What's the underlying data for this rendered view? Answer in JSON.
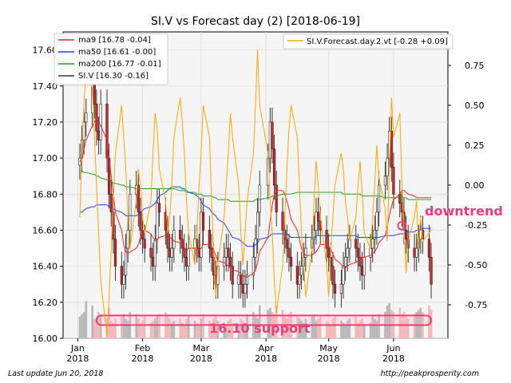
{
  "chart_data": {
    "type": "candlestick",
    "title": "SI.V vs Forecast day (2)  [2018-06-19]",
    "x_tick_labels": [
      {
        "date": "2018-01-01",
        "label": [
          "Jan",
          "2018"
        ]
      },
      {
        "date": "2018-02-01",
        "label": [
          "Feb",
          "2018"
        ]
      },
      {
        "date": "2018-03-01",
        "label": [
          "Mar",
          "2018"
        ]
      },
      {
        "date": "2018-04-01",
        "label": [
          "Apr",
          "2018"
        ]
      },
      {
        "date": "2018-05-01",
        "label": [
          "May",
          "2018"
        ]
      },
      {
        "date": "2018-06-01",
        "label": [
          "Jun",
          "2018"
        ]
      }
    ],
    "xlim": [
      "2017-12-25",
      "2018-06-27"
    ],
    "y_left": {
      "ylim": [
        16.0,
        17.7
      ],
      "ticks": [
        "16.00",
        "16.20",
        "16.40",
        "16.60",
        "16.80",
        "17.00",
        "17.20",
        "17.40",
        "17.60"
      ]
    },
    "y_right": {
      "ylim": [
        -0.96,
        0.96
      ],
      "ticks": [
        "0.75",
        "0.50",
        "0.25",
        "0.00",
        "-0.25",
        "-0.50",
        "-0.75"
      ]
    },
    "grid": true,
    "legend_left": {
      "placement": "top-left",
      "entries": [
        {
          "label": "ma9 [16.78 -0.04]",
          "color": "#ff2020"
        },
        {
          "label": "ma50 [16.61 -0.00]",
          "color": "#2040ff"
        },
        {
          "label": "ma200 [16.77 -0.01]",
          "color": "#20a020"
        },
        {
          "label": "SI.V [16.30 -0.16]",
          "color": "#333333"
        }
      ]
    },
    "legend_right": {
      "placement": "top-right",
      "entries": [
        {
          "label": "SI.V.Forecast.day.2.vt [-0.28 +0.09]",
          "color": "#ffa500"
        }
      ]
    },
    "annotations": [
      {
        "text": "downtrend",
        "color": "#f03c78",
        "date": "2018-06-03",
        "value": 16.62
      },
      {
        "text": "16.10 support",
        "color": "#f03c78",
        "value": 16.1
      }
    ],
    "support_band": {
      "from": "2018-01-10",
      "to": "2018-06-19",
      "value": 16.1
    },
    "downtrend_marker": {
      "date": "2018-06-05",
      "value": 16.625
    },
    "colors": {
      "up": "#ffffff",
      "down": "#e02020",
      "wick": "#222222",
      "forecast": "#ffa500",
      "plot_bg": "#f5f5f5"
    },
    "series": {
      "dates": [
        "2018-01-02",
        "2018-01-03",
        "2018-01-04",
        "2018-01-05",
        "2018-01-08",
        "2018-01-09",
        "2018-01-10",
        "2018-01-11",
        "2018-01-12",
        "2018-01-15",
        "2018-01-16",
        "2018-01-17",
        "2018-01-18",
        "2018-01-19",
        "2018-01-22",
        "2018-01-23",
        "2018-01-24",
        "2018-01-25",
        "2018-01-26",
        "2018-01-29",
        "2018-01-30",
        "2018-01-31",
        "2018-02-01",
        "2018-02-02",
        "2018-02-05",
        "2018-02-06",
        "2018-02-07",
        "2018-02-08",
        "2018-02-09",
        "2018-02-12",
        "2018-02-13",
        "2018-02-14",
        "2018-02-15",
        "2018-02-16",
        "2018-02-19",
        "2018-02-20",
        "2018-02-21",
        "2018-02-22",
        "2018-02-23",
        "2018-02-26",
        "2018-02-27",
        "2018-02-28",
        "2018-03-01",
        "2018-03-02",
        "2018-03-05",
        "2018-03-06",
        "2018-03-07",
        "2018-03-08",
        "2018-03-09",
        "2018-03-12",
        "2018-03-13",
        "2018-03-14",
        "2018-03-15",
        "2018-03-16",
        "2018-03-19",
        "2018-03-20",
        "2018-03-21",
        "2018-03-22",
        "2018-03-23",
        "2018-03-26",
        "2018-03-27",
        "2018-03-28",
        "2018-03-29",
        "2018-04-02",
        "2018-04-03",
        "2018-04-04",
        "2018-04-05",
        "2018-04-06",
        "2018-04-09",
        "2018-04-10",
        "2018-04-11",
        "2018-04-12",
        "2018-04-13",
        "2018-04-16",
        "2018-04-17",
        "2018-04-18",
        "2018-04-19",
        "2018-04-20",
        "2018-04-23",
        "2018-04-24",
        "2018-04-25",
        "2018-04-26",
        "2018-04-27",
        "2018-04-30",
        "2018-05-01",
        "2018-05-02",
        "2018-05-03",
        "2018-05-04",
        "2018-05-07",
        "2018-05-08",
        "2018-05-09",
        "2018-05-10",
        "2018-05-11",
        "2018-05-14",
        "2018-05-15",
        "2018-05-16",
        "2018-05-17",
        "2018-05-18",
        "2018-05-21",
        "2018-05-22",
        "2018-05-23",
        "2018-05-24",
        "2018-05-25",
        "2018-05-28",
        "2018-05-29",
        "2018-05-30",
        "2018-05-31",
        "2018-06-01",
        "2018-06-04",
        "2018-06-05",
        "2018-06-06",
        "2018-06-07",
        "2018-06-08",
        "2018-06-11",
        "2018-06-12",
        "2018-06-13",
        "2018-06-14",
        "2018-06-15",
        "2018-06-18",
        "2018-06-19"
      ],
      "close": [
        17.0,
        17.1,
        17.2,
        17.25,
        17.45,
        17.3,
        17.15,
        17.1,
        17.3,
        17.0,
        16.8,
        16.7,
        16.55,
        16.4,
        16.3,
        16.35,
        16.5,
        16.6,
        16.8,
        16.85,
        16.7,
        16.6,
        16.55,
        16.5,
        16.45,
        16.4,
        16.55,
        16.75,
        16.7,
        16.6,
        16.5,
        16.45,
        16.5,
        16.6,
        16.55,
        16.5,
        16.45,
        16.4,
        16.5,
        16.55,
        16.5,
        16.45,
        16.7,
        16.6,
        16.5,
        16.45,
        16.35,
        16.3,
        16.4,
        16.45,
        16.5,
        16.45,
        16.4,
        16.3,
        16.35,
        16.3,
        16.25,
        16.3,
        16.35,
        16.45,
        16.55,
        16.7,
        16.85,
        17.0,
        17.2,
        17.05,
        16.85,
        16.7,
        16.6,
        16.55,
        16.5,
        16.45,
        16.4,
        16.3,
        16.35,
        16.4,
        16.45,
        16.5,
        16.55,
        16.6,
        16.7,
        16.65,
        16.6,
        16.5,
        16.45,
        16.4,
        16.3,
        16.25,
        16.3,
        16.4,
        16.45,
        16.5,
        16.55,
        16.5,
        16.45,
        16.4,
        16.35,
        16.45,
        16.5,
        16.55,
        16.6,
        16.7,
        16.85,
        16.9,
        17.0,
        17.15,
        16.95,
        16.8,
        16.75,
        16.7,
        16.6,
        16.55,
        16.5,
        16.45,
        16.5,
        16.55,
        16.6,
        16.55,
        16.45,
        16.3
      ],
      "volume": [
        0.5,
        0.55,
        0.6,
        0.85,
        0.75,
        0.45,
        0.5,
        0.6,
        0.55,
        0.45,
        0.7,
        0.4,
        0.35,
        0.45,
        0.5,
        0.55,
        0.45,
        0.4,
        0.6,
        0.55,
        0.45,
        0.35,
        0.4,
        0.5,
        0.35,
        0.4,
        0.45,
        0.5,
        0.55,
        0.6,
        0.5,
        0.45,
        0.35,
        0.4,
        0.45,
        0.35,
        0.3,
        0.45,
        0.5,
        0.4,
        0.35,
        0.3,
        0.45,
        0.55,
        0.4,
        0.35,
        0.45,
        0.5,
        0.4,
        0.35,
        0.3,
        0.4,
        0.45,
        0.35,
        0.3,
        0.45,
        0.4,
        0.35,
        0.55,
        0.6,
        0.5,
        0.45,
        0.75,
        0.65,
        0.7,
        0.6,
        0.55,
        0.75,
        0.65,
        0.5,
        0.45,
        0.55,
        0.6,
        0.5,
        0.45,
        0.4,
        0.35,
        0.45,
        0.5,
        0.55,
        0.4,
        0.45,
        0.5,
        0.4,
        0.35,
        0.3,
        0.45,
        0.5,
        0.4,
        0.35,
        0.3,
        0.4,
        0.45,
        0.5,
        0.35,
        0.4,
        0.45,
        0.3,
        0.35,
        0.5,
        0.45,
        0.4,
        0.55,
        0.6,
        0.75,
        0.8,
        0.65,
        0.6,
        0.7,
        0.55,
        0.6,
        0.5,
        0.45,
        0.55,
        0.6,
        0.65,
        0.7,
        0.6,
        0.75,
        0.65
      ],
      "forecast": [
        -0.2,
        0.2,
        0.5,
        0.75,
        0.6,
        0.3,
        0.0,
        -0.3,
        -0.6,
        -0.95,
        -0.7,
        -0.4,
        -0.1,
        0.2,
        0.5,
        0.3,
        0.1,
        -0.2,
        -0.4,
        -0.1,
        0.1,
        0.0,
        -0.2,
        -0.3,
        -0.1,
        0.2,
        0.45,
        0.35,
        0.1,
        -0.1,
        -0.3,
        -0.2,
        0.0,
        0.3,
        0.55,
        0.4,
        0.2,
        -0.1,
        -0.3,
        -0.5,
        -0.3,
        0.0,
        0.2,
        0.5,
        0.3,
        -0.1,
        -0.4,
        -0.7,
        -0.5,
        -0.2,
        0.0,
        0.2,
        0.45,
        0.3,
        0.0,
        -0.3,
        -0.5,
        -0.3,
        -0.1,
        0.2,
        0.5,
        0.85,
        0.5,
        0.2,
        -0.1,
        -0.3,
        -0.6,
        -0.8,
        -0.5,
        -0.2,
        0.1,
        0.35,
        0.5,
        0.3,
        0.0,
        -0.3,
        -0.5,
        -0.7,
        -0.4,
        -0.1,
        0.15,
        0.0,
        -0.2,
        -0.5,
        -0.7,
        -0.4,
        -0.2,
        0.0,
        0.2,
        0.1,
        -0.1,
        -0.2,
        -0.35,
        -0.2,
        0.0,
        0.15,
        -0.05,
        -0.3,
        -0.4,
        -0.2,
        0.0,
        0.25,
        0.05,
        -0.15,
        -0.35,
        0.1,
        0.55,
        0.3,
        0.45,
        0.0,
        -0.3,
        -0.55,
        -0.35,
        -0.2,
        -0.1,
        -0.4,
        -0.2,
        -0.35,
        -0.3,
        -0.28
      ],
      "ma9": [
        16.98,
        17.0,
        17.05,
        17.1,
        17.18,
        17.2,
        17.22,
        17.2,
        17.18,
        17.1,
        17.0,
        16.9,
        16.8,
        16.7,
        16.6,
        16.52,
        16.48,
        16.47,
        16.48,
        16.5,
        16.52,
        16.56,
        16.6,
        16.6,
        16.58,
        16.56,
        16.54,
        16.55,
        16.56,
        16.57,
        16.57,
        16.56,
        16.55,
        16.54,
        16.53,
        16.52,
        16.5,
        16.49,
        16.5,
        16.5,
        16.5,
        16.49,
        16.5,
        16.52,
        16.52,
        16.51,
        16.49,
        16.46,
        16.43,
        16.42,
        16.41,
        16.4,
        16.39,
        16.38,
        16.37,
        16.36,
        16.35,
        16.34,
        16.34,
        16.36,
        16.38,
        16.42,
        16.48,
        16.56,
        16.65,
        16.74,
        16.8,
        16.82,
        16.82,
        16.8,
        16.76,
        16.72,
        16.66,
        16.6,
        16.55,
        16.5,
        16.47,
        16.46,
        16.46,
        16.47,
        16.48,
        16.5,
        16.52,
        16.52,
        16.51,
        16.49,
        16.47,
        16.44,
        16.41,
        16.39,
        16.39,
        16.4,
        16.41,
        16.42,
        16.43,
        16.44,
        16.45,
        16.45,
        16.46,
        16.47,
        16.48,
        16.5,
        16.53,
        16.57,
        16.62,
        16.68,
        16.73,
        16.77,
        16.8,
        16.82,
        16.82,
        16.81,
        16.8,
        16.79,
        16.78,
        16.78,
        16.78,
        16.78,
        16.78,
        16.78
      ],
      "ma50": [
        16.7,
        16.7,
        16.71,
        16.72,
        16.73,
        16.73,
        16.74,
        16.74,
        16.74,
        16.74,
        16.73,
        16.73,
        16.72,
        16.71,
        16.7,
        16.69,
        16.68,
        16.68,
        16.68,
        16.68,
        16.69,
        16.7,
        16.71,
        16.72,
        16.73,
        16.74,
        16.75,
        16.77,
        16.79,
        16.81,
        16.82,
        16.83,
        16.84,
        16.84,
        16.84,
        16.83,
        16.83,
        16.82,
        16.81,
        16.8,
        16.79,
        16.78,
        16.76,
        16.74,
        16.72,
        16.7,
        16.69,
        16.68,
        16.66,
        16.64,
        16.62,
        16.6,
        16.58,
        16.56,
        16.55,
        16.54,
        16.53,
        16.52,
        16.51,
        16.51,
        16.52,
        16.53,
        16.55,
        16.56,
        16.57,
        16.58,
        16.58,
        16.58,
        16.58,
        16.58,
        16.58,
        16.57,
        16.56,
        16.56,
        16.56,
        16.56,
        16.56,
        16.56,
        16.56,
        16.56,
        16.57,
        16.57,
        16.57,
        16.57,
        16.57,
        16.57,
        16.57,
        16.57,
        16.57,
        16.57,
        16.57,
        16.57,
        16.57,
        16.57,
        16.56,
        16.56,
        16.56,
        16.56,
        16.56,
        16.56,
        16.56,
        16.56,
        16.56,
        16.57,
        16.57,
        16.57,
        16.57,
        16.57,
        16.58,
        16.58,
        16.58,
        16.59,
        16.59,
        16.59,
        16.6,
        16.6,
        16.6,
        16.61,
        16.61,
        16.61
      ],
      "ma200": [
        16.93,
        16.93,
        16.92,
        16.92,
        16.91,
        16.91,
        16.9,
        16.9,
        16.89,
        16.88,
        16.88,
        16.87,
        16.86,
        16.86,
        16.85,
        16.85,
        16.84,
        16.84,
        16.84,
        16.83,
        16.83,
        16.83,
        16.83,
        16.83,
        16.83,
        16.83,
        16.83,
        16.83,
        16.83,
        16.83,
        16.83,
        16.83,
        16.83,
        16.83,
        16.82,
        16.82,
        16.82,
        16.81,
        16.81,
        16.81,
        16.8,
        16.8,
        16.8,
        16.79,
        16.79,
        16.79,
        16.78,
        16.78,
        16.77,
        16.77,
        16.77,
        16.77,
        16.76,
        16.76,
        16.76,
        16.76,
        16.76,
        16.76,
        16.76,
        16.76,
        16.77,
        16.77,
        16.77,
        16.78,
        16.78,
        16.79,
        16.79,
        16.79,
        16.8,
        16.8,
        16.8,
        16.8,
        16.8,
        16.81,
        16.81,
        16.81,
        16.81,
        16.81,
        16.81,
        16.81,
        16.81,
        16.81,
        16.81,
        16.81,
        16.81,
        16.81,
        16.81,
        16.81,
        16.81,
        16.8,
        16.8,
        16.8,
        16.8,
        16.8,
        16.8,
        16.8,
        16.79,
        16.79,
        16.79,
        16.79,
        16.79,
        16.79,
        16.79,
        16.78,
        16.78,
        16.78,
        16.78,
        16.78,
        16.78,
        16.78,
        16.78,
        16.78,
        16.77,
        16.77,
        16.77,
        16.77,
        16.77,
        16.77,
        16.77,
        16.77
      ]
    }
  },
  "footer": {
    "left": "Last update Jun 20, 2018",
    "right": "http://peakprosperity.com"
  }
}
